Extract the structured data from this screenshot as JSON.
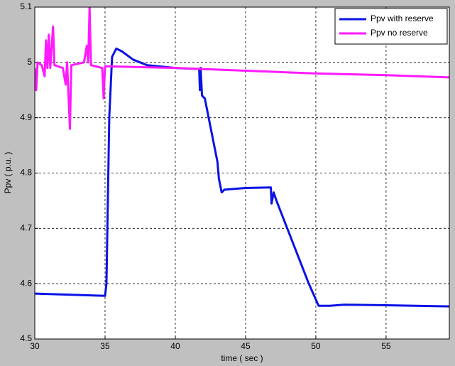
{
  "chart_data": {
    "type": "line",
    "xlabel": "time  ( sec )",
    "ylabel": "Ppv  ( p.u. )",
    "xlim": [
      30,
      59.5
    ],
    "ylim": [
      4.5,
      5.1
    ],
    "xticks": [
      30,
      35,
      40,
      45,
      50,
      55
    ],
    "yticks": [
      4.5,
      4.6,
      4.7,
      4.8,
      4.9,
      5,
      5.1
    ],
    "grid": true,
    "legend": "top-right",
    "series": [
      {
        "name": "Ppv with reserve",
        "color": "#0a12e6",
        "x": [
          30,
          35,
          35.1,
          35.3,
          35.5,
          35.8,
          36.2,
          37,
          38,
          40,
          41.7,
          41.75,
          41.8,
          41.9,
          42.1,
          43,
          43.1,
          43.3,
          43.5,
          45,
          46.8,
          46.85,
          47,
          47.2,
          49.5,
          50.2,
          51,
          52,
          55,
          59.5
        ],
        "values": [
          4.582,
          4.578,
          4.6,
          4.9,
          5.01,
          5.025,
          5.02,
          5.005,
          4.995,
          4.99,
          4.988,
          4.95,
          4.99,
          4.94,
          4.935,
          4.82,
          4.79,
          4.765,
          4.77,
          4.773,
          4.774,
          4.745,
          4.765,
          4.75,
          4.6,
          4.56,
          4.56,
          4.562,
          4.561,
          4.559
        ]
      },
      {
        "name": "Ppv no reserve",
        "color": "#ff1aff",
        "x": [
          30,
          30.1,
          30.2,
          30.5,
          30.7,
          30.8,
          30.9,
          31,
          31.1,
          31.3,
          31.4,
          32,
          32.2,
          32.3,
          32.5,
          32.6,
          33.5,
          33.7,
          33.8,
          33.9,
          34,
          34.8,
          34.9,
          35,
          40,
          45,
          50,
          55,
          59.5
        ],
        "values": [
          4.99,
          4.95,
          5,
          4.995,
          4.975,
          5.04,
          4.99,
          5.05,
          4.99,
          5.065,
          4.995,
          4.99,
          4.96,
          5,
          4.88,
          4.995,
          5,
          5.03,
          5,
          5.1,
          4.995,
          4.99,
          4.935,
          4.993,
          4.99,
          4.985,
          4.98,
          4.977,
          4.973
        ]
      }
    ]
  }
}
